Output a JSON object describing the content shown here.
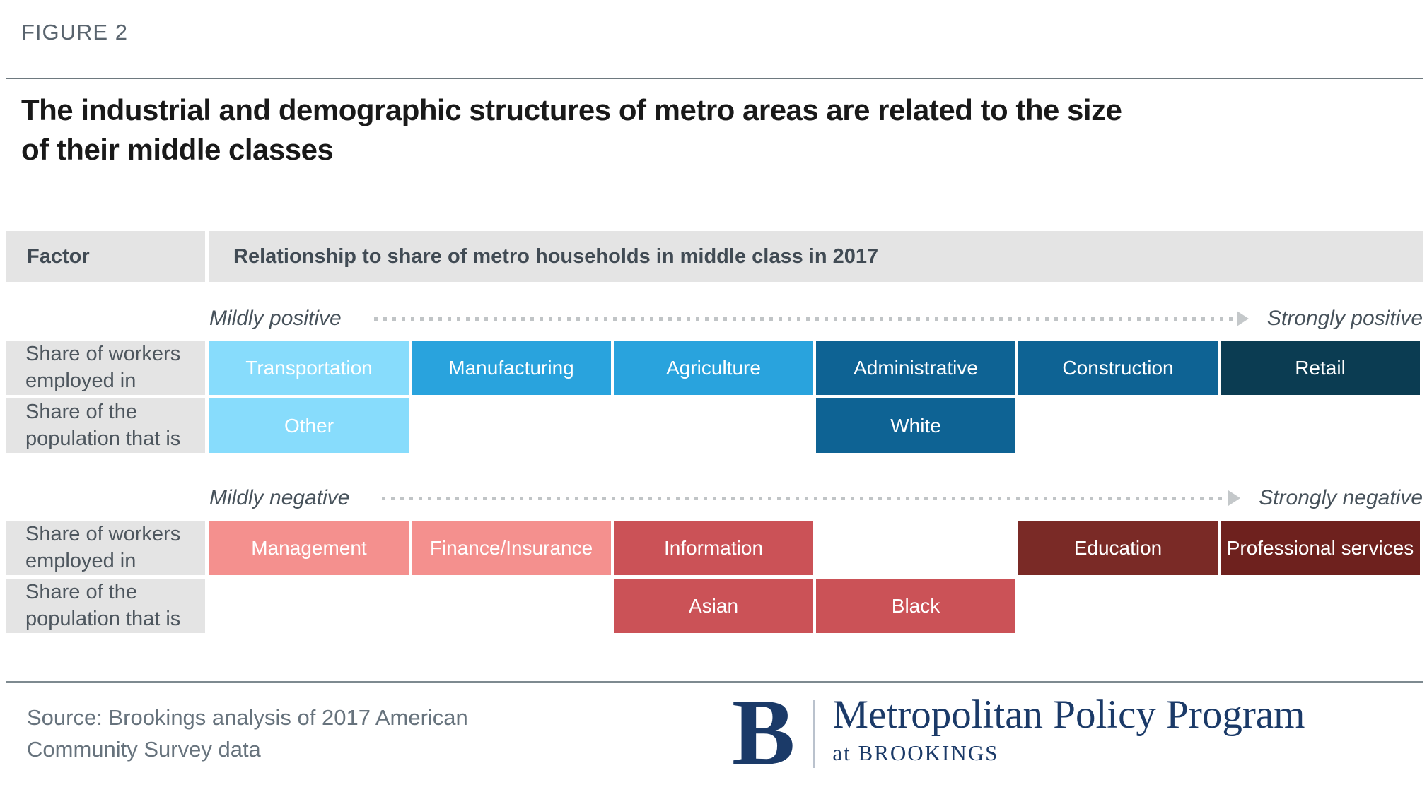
{
  "figure": {
    "label": "FIGURE 2",
    "title_line1": "The industrial and demographic structures of metro areas are related to the size",
    "title_line2": "of their middle classes"
  },
  "table_header": {
    "factor": "Factor",
    "relationship": "Relationship to share of metro households in middle class in 2017"
  },
  "chart_data": {
    "type": "heatmap",
    "title": "Relationship to share of metro households in middle class in 2017",
    "layout_hint": "6 strength columns per direction; left = mild relationship, right = strong relationship; darker fill = stronger relationship",
    "positive": {
      "scale_left": "Mildly positive",
      "scale_right": "Strongly positive",
      "rows": [
        {
          "factor": "Share of workers employed in",
          "bars": [
            {
              "label": "Transportation",
              "col": 1,
              "strength": "mild",
              "color": "#87DCFC"
            },
            {
              "label": "Manufacturing",
              "col": 2,
              "strength": "moderate",
              "color": "#29A3DD"
            },
            {
              "label": "Agriculture",
              "col": 3,
              "strength": "moderate",
              "color": "#29A3DD"
            },
            {
              "label": "Administrative",
              "col": 4,
              "strength": "strong",
              "color": "#0E6394"
            },
            {
              "label": "Construction",
              "col": 5,
              "strength": "strong",
              "color": "#0E6394"
            },
            {
              "label": "Retail",
              "col": 6,
              "strength": "strongest",
              "color": "#0B3C52"
            }
          ]
        },
        {
          "factor": "Share of the population that is",
          "bars": [
            {
              "label": "Other",
              "col": 1,
              "strength": "mild",
              "color": "#87DCFC"
            },
            {
              "label": "White",
              "col": 4,
              "strength": "strong",
              "color": "#0E6394"
            }
          ]
        }
      ]
    },
    "negative": {
      "scale_left": "Mildly negative",
      "scale_right": "Strongly negative",
      "rows": [
        {
          "factor": "Share of workers employed in",
          "bars": [
            {
              "label": "Management",
              "col": 1,
              "strength": "mild",
              "color": "#F4908E"
            },
            {
              "label": "Finance/Insurance",
              "col": 2,
              "strength": "mild",
              "color": "#F4908E"
            },
            {
              "label": "Information",
              "col": 3,
              "strength": "moderate",
              "color": "#CB5257"
            },
            {
              "label": "Education",
              "col": 5,
              "strength": "strong",
              "color": "#7A2A26"
            },
            {
              "label": "Professional services",
              "col": 6,
              "strength": "strongest",
              "color": "#6E211E"
            }
          ]
        },
        {
          "factor": "Share of the population that is",
          "bars": [
            {
              "label": "Asian",
              "col": 3,
              "strength": "moderate",
              "color": "#CB5257"
            },
            {
              "label": "Black",
              "col": 4,
              "strength": "moderate",
              "color": "#CB5257"
            }
          ]
        }
      ]
    }
  },
  "source": {
    "line1": "Source: Brookings analysis of 2017 American",
    "line2": "Community Survey data"
  },
  "logo": {
    "letter": "B",
    "program": "Metropolitan Policy Program",
    "tagline": "at BROOKINGS"
  },
  "colors": {
    "band_gray": "#E4E4E4",
    "header_text": "#414B54",
    "label_text": "#4D565E",
    "figure_label_gray": "#59646E",
    "title_text": "#191919",
    "rule_gray": "#7E8A90",
    "dotted_gray": "#C0C4C6",
    "source_gray": "#67737D",
    "brookings_navy": "#1B3A68"
  }
}
